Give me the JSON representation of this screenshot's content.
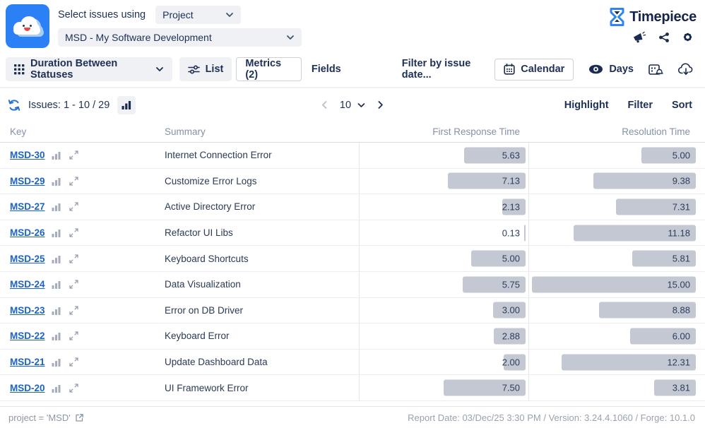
{
  "header": {
    "select_label": "Select issues using",
    "mode_select": "Project",
    "project_select": "MSD - My Software Development",
    "brand": "Timepiece"
  },
  "toolbar": {
    "view_select": "Duration Between Statuses",
    "list": "List",
    "metrics": "Metrics (2)",
    "fields": "Fields",
    "filter_by_date": "Filter by issue date...",
    "calendar": "Calendar",
    "days": "Days"
  },
  "issues_bar": {
    "issues_label": "Issues: 1 - 10 / 29",
    "page_size": "10",
    "highlight": "Highlight",
    "filter": "Filter",
    "sort": "Sort"
  },
  "table": {
    "columns": [
      "Key",
      "Summary",
      "First Response Time",
      "Resolution Time"
    ],
    "bar_max_value": 15,
    "rows": [
      {
        "key": "MSD-30",
        "summary": "Internet Connection Error",
        "first_response_time": 5.63,
        "resolution_time": 5.0
      },
      {
        "key": "MSD-29",
        "summary": "Customize Error Logs",
        "first_response_time": 7.13,
        "resolution_time": 9.38
      },
      {
        "key": "MSD-27",
        "summary": "Active Directory Error",
        "first_response_time": 2.13,
        "resolution_time": 7.31
      },
      {
        "key": "MSD-26",
        "summary": "Refactor UI Libs",
        "first_response_time": 0.13,
        "resolution_time": 11.18
      },
      {
        "key": "MSD-25",
        "summary": "Keyboard Shortcuts",
        "first_response_time": 5.0,
        "resolution_time": 5.81
      },
      {
        "key": "MSD-24",
        "summary": "Data Visualization",
        "first_response_time": 5.75,
        "resolution_time": 15.0
      },
      {
        "key": "MSD-23",
        "summary": "Error on DB Driver",
        "first_response_time": 3.0,
        "resolution_time": 8.88
      },
      {
        "key": "MSD-22",
        "summary": "Keyboard Error",
        "first_response_time": 2.88,
        "resolution_time": 6.0
      },
      {
        "key": "MSD-21",
        "summary": "Update Dashboard Data",
        "first_response_time": 2.0,
        "resolution_time": 12.31
      },
      {
        "key": "MSD-20",
        "summary": "UI Framework Error",
        "first_response_time": 7.5,
        "resolution_time": 3.81
      }
    ]
  },
  "footer": {
    "jql": "project = 'MSD'",
    "report_info": "Report Date: 03/Dec/25 3:30 PM / Version: 3.24.4.1060 / Forge: 10.1.0"
  },
  "colors": {
    "accent_blue": "#2b80f6",
    "navy": "#172b4d",
    "link_blue": "#1b63c5",
    "bar_gray": "#c3c8d2"
  }
}
